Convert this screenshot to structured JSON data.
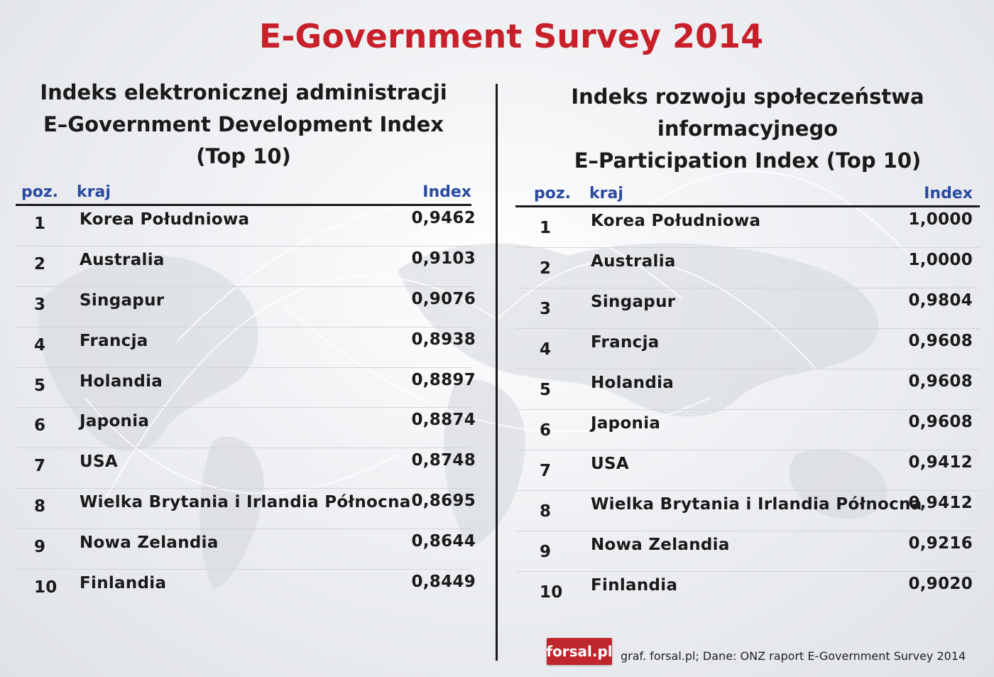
{
  "title": "E-Government Survey 2014",
  "logo_text": "forsal.pl",
  "footer": "graf. forsal.pl;  Dane: ONZ raport E-Government Survey 2014",
  "chart_data": [
    {
      "type": "table",
      "title_lines": [
        "Indeks elektronicznej administracji",
        "E–Government Development Index",
        "(Top 10)"
      ],
      "columns": [
        "poz.",
        "kraj",
        "Index"
      ],
      "rows": [
        {
          "pos": "1",
          "country": "Korea Południowa",
          "value": "0,9462"
        },
        {
          "pos": "2",
          "country": "Australia",
          "value": "0,9103"
        },
        {
          "pos": "3",
          "country": "Singapur",
          "value": "0,9076"
        },
        {
          "pos": "4",
          "country": "Francja",
          "value": "0,8938"
        },
        {
          "pos": "5",
          "country": "Holandia",
          "value": "0,8897"
        },
        {
          "pos": "6",
          "country": "Japonia",
          "value": "0,8874"
        },
        {
          "pos": "7",
          "country": "USA",
          "value": "0,8748"
        },
        {
          "pos": "8",
          "country": "Wielka Brytania i Irlandia Północna",
          "value": "0,8695"
        },
        {
          "pos": "9",
          "country": "Nowa Zelandia",
          "value": "0,8644"
        },
        {
          "pos": "10",
          "country": "Finlandia",
          "value": "0,8449"
        }
      ]
    },
    {
      "type": "table",
      "title_lines": [
        "Indeks rozwoju społeczeństwa",
        "informacyjnego",
        "E–Participation Index (Top 10)"
      ],
      "columns": [
        "poz.",
        "kraj",
        "Index"
      ],
      "rows": [
        {
          "pos": "1",
          "country": "Korea Południowa",
          "value": "1,0000"
        },
        {
          "pos": "2",
          "country": "Australia",
          "value": "1,0000"
        },
        {
          "pos": "3",
          "country": "Singapur",
          "value": "0,9804"
        },
        {
          "pos": "4",
          "country": "Francja",
          "value": "0,9608"
        },
        {
          "pos": "5",
          "country": "Holandia",
          "value": "0,9608"
        },
        {
          "pos": "6",
          "country": "Japonia",
          "value": "0,9608"
        },
        {
          "pos": "7",
          "country": "USA",
          "value": "0,9412"
        },
        {
          "pos": "8",
          "country": "Wielka Brytania i Irlandia Północna",
          "value": "0,9412"
        },
        {
          "pos": "9",
          "country": "Nowa Zelandia",
          "value": "0,9216"
        },
        {
          "pos": "10",
          "country": "Finlandia",
          "value": "0,9020"
        }
      ]
    }
  ]
}
